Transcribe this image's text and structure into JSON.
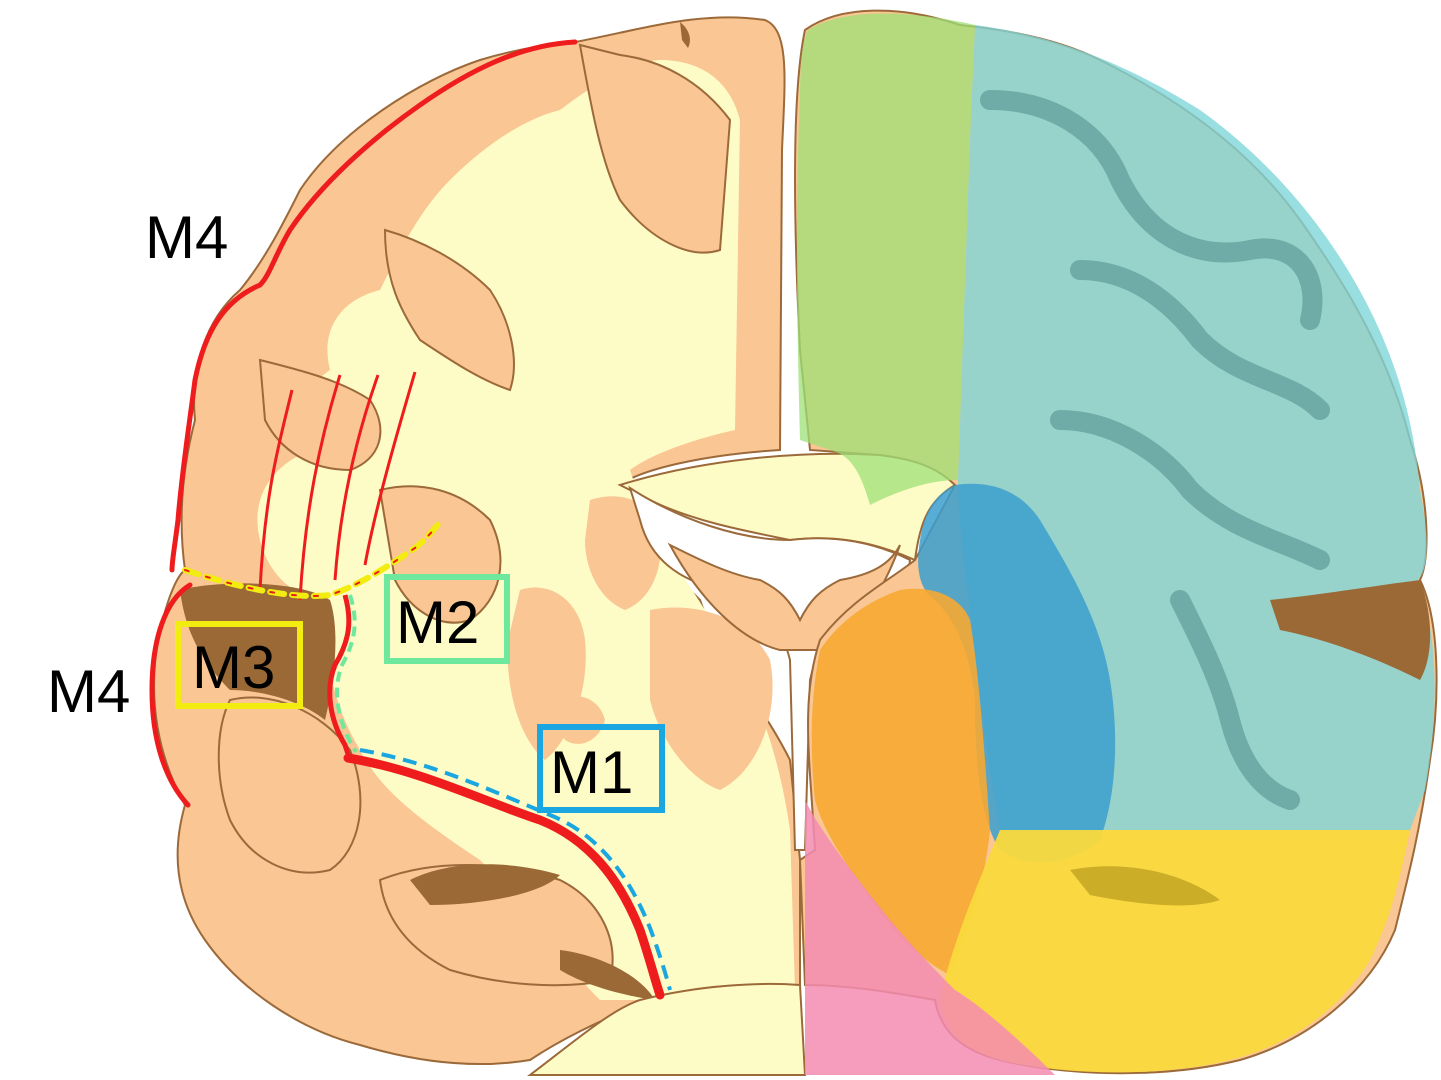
{
  "labels": {
    "m1": "M1",
    "m2": "M2",
    "m3": "M3",
    "m4_upper": "M4",
    "m4_lower": "M4"
  },
  "colors": {
    "cortex": "#f9c694",
    "cortex_outline": "#9c6a3a",
    "white_matter": "#fefcc6",
    "sulcus": "#9a6936",
    "m1": "#1aa6e0",
    "m2": "#6ee89c",
    "m3": "#f2ec10",
    "m4": "#ee1c1c",
    "territory_aca": "#9ee077",
    "territory_mca": "#7fd6d8",
    "territory_deep": "#3b9fcf",
    "territory_lenticulostriate": "#f6a832",
    "territory_pca": "#fad93c",
    "territory_pink": "#f48cb2"
  }
}
